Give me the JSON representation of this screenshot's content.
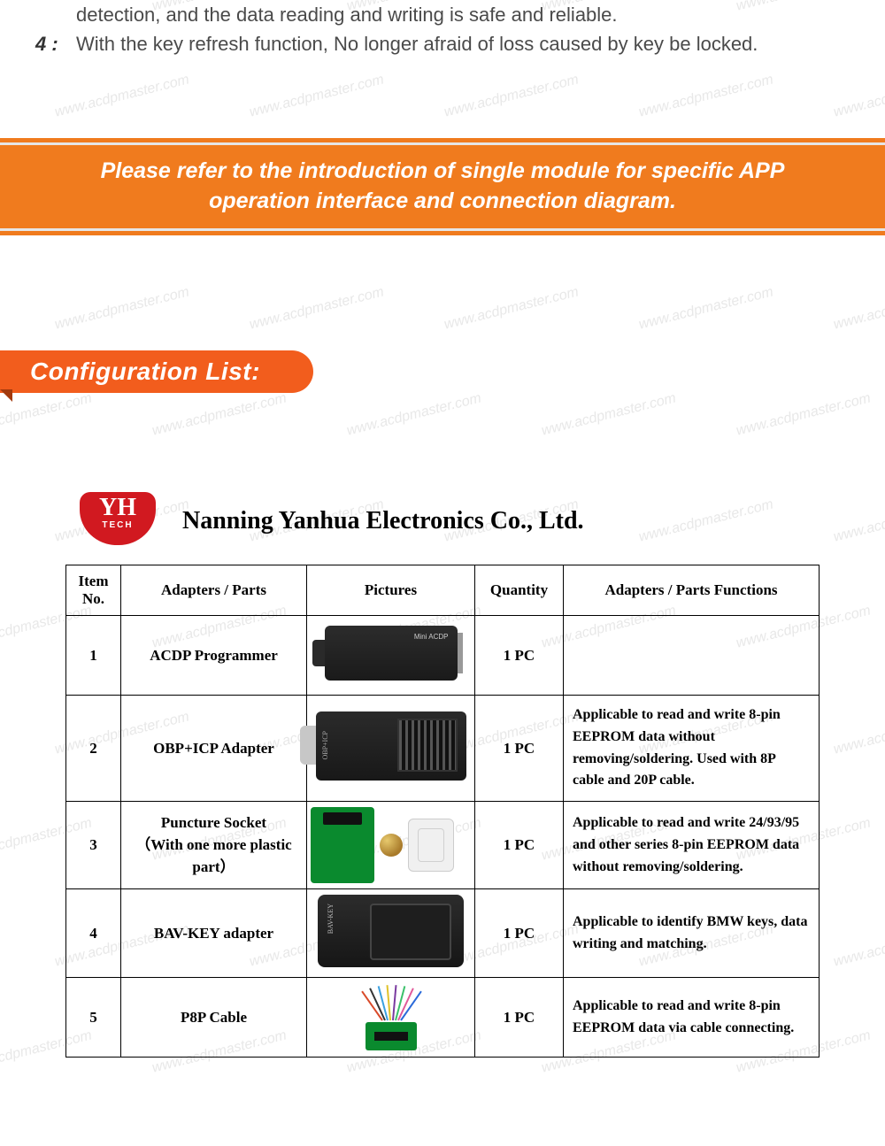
{
  "watermark_text": "www.acdpmaster.com",
  "top_list": [
    {
      "idx_visible": false,
      "idx": "",
      "text": "detection, and the data reading and writing is safe and reliable."
    },
    {
      "idx_visible": true,
      "idx": "4 :",
      "text": "With the key refresh function, No longer afraid of loss caused by key be locked."
    }
  ],
  "banner_text": "Please refer to the introduction of single module for specific APP operation interface and connection diagram.",
  "config_badge": "Configuration List:",
  "logo": {
    "top": "YH",
    "bottom": "TECH"
  },
  "company_name": "Nanning Yanhua Electronics Co., Ltd.",
  "table": {
    "headers": {
      "no": "Item No.",
      "part": "Adapters / Parts",
      "pic": "Pictures",
      "qty": "Quantity",
      "fn": "Adapters / Parts Functions"
    },
    "rows": [
      {
        "no": "1",
        "part": "ACDP Programmer",
        "qty": "1 PC",
        "fn": ""
      },
      {
        "no": "2",
        "part": "OBP+ICP Adapter",
        "qty": "1 PC",
        "fn": "Applicable to read and write 8-pin EEPROM data without removing/soldering. Used with 8P cable and 20P cable."
      },
      {
        "no": "3",
        "part": "Puncture Socket\n（With one more plastic part）",
        "qty": "1 PC",
        "fn": "Applicable to read and write 24/93/95 and other series 8-pin EEPROM data without removing/soldering."
      },
      {
        "no": "4",
        "part": "BAV-KEY adapter",
        "qty": "1 PC",
        "fn": "Applicable to identify BMW keys, data writing and matching."
      },
      {
        "no": "5",
        "part": "P8P Cable",
        "qty": "1 PC",
        "fn": "Applicable to read and write 8-pin EEPROM data via cable connecting."
      }
    ]
  },
  "colors": {
    "orange_banner": "#f07b1e",
    "badge_orange": "#f25d1d",
    "badge_shadow": "#a33a0d",
    "logo_red": "#d11920",
    "pcb_green": "#0a8a2e",
    "watermark": "#e8e8e8"
  },
  "p8p_wire_colors": [
    "#d94a2a",
    "#333333",
    "#3aa0e0",
    "#e0c22a",
    "#7a3aa0",
    "#3ac06a",
    "#e05a9a",
    "#2a6ad9"
  ],
  "pic_labels": {
    "programmer": "Mini ACDP",
    "obp_side": "OBP+ICP",
    "bav_side": "BAV-KEY"
  }
}
